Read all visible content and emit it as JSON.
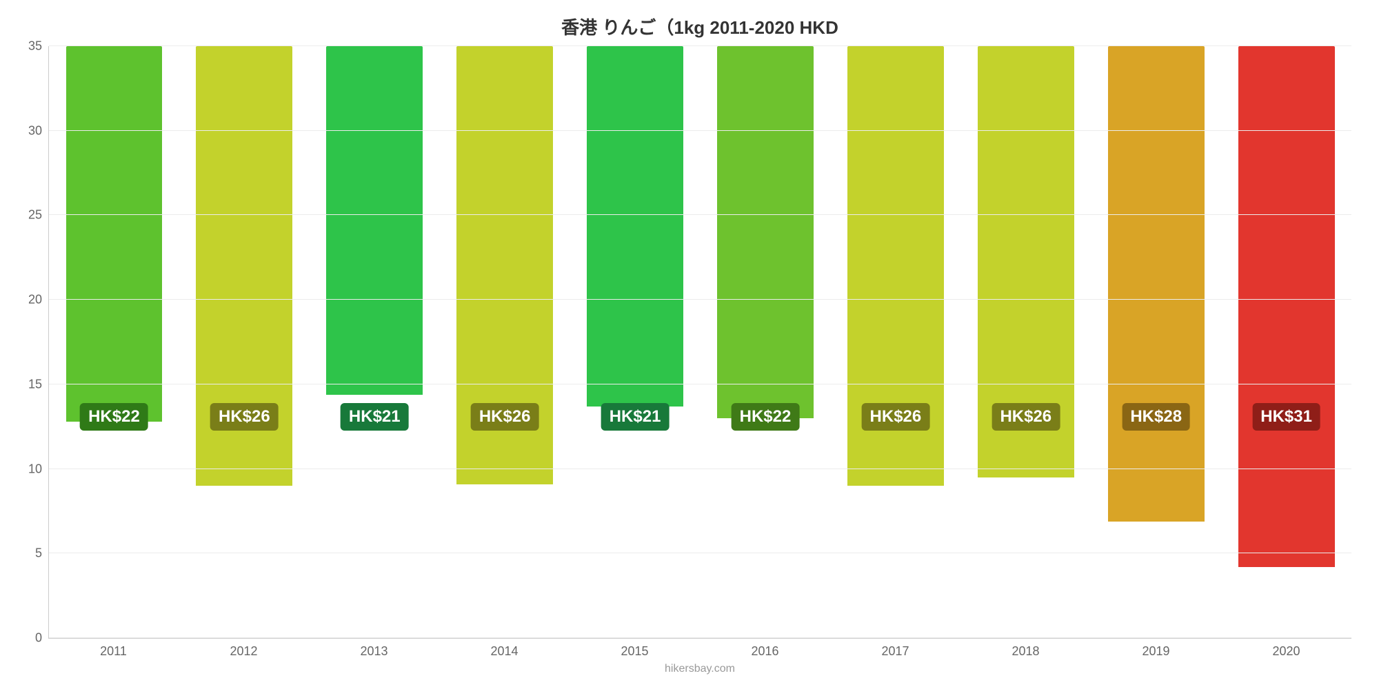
{
  "chart": {
    "type": "bar",
    "title": "香港 りんご（1kg 2011-2020 HKD",
    "title_fontsize": 26,
    "source_text": "hikersbay.com",
    "source_fontsize": 16,
    "background_color": "#ffffff",
    "grid_color": "#ececec",
    "axis_color": "#cccccc",
    "tick_color": "#666666",
    "tick_fontsize": 18,
    "ylim": [
      0,
      35
    ],
    "ytick_step": 5,
    "yticks": [
      0,
      5,
      10,
      15,
      20,
      25,
      30,
      35
    ],
    "bar_width": 0.74,
    "label_fontsize": 24,
    "label_text_color": "#ffffff",
    "label_radius": 6,
    "label_center_value": 13,
    "categories": [
      "2011",
      "2012",
      "2013",
      "2014",
      "2015",
      "2016",
      "2017",
      "2018",
      "2019",
      "2020"
    ],
    "values": [
      22.2,
      26.0,
      20.6,
      25.9,
      21.3,
      22.0,
      26.0,
      25.5,
      28.1,
      30.8
    ],
    "value_labels": [
      "HK$22",
      "HK$26",
      "HK$21",
      "HK$26",
      "HK$21",
      "HK$22",
      "HK$26",
      "HK$26",
      "HK$28",
      "HK$31"
    ],
    "bar_colors": [
      "#5ec22e",
      "#c3d22c",
      "#2ec44a",
      "#c3d22c",
      "#2ec44a",
      "#6ec22e",
      "#c3d22c",
      "#c3d22c",
      "#d9a426",
      "#e2362e"
    ],
    "label_bg_colors": [
      "#2f7a17",
      "#7a7e18",
      "#18793a",
      "#7a7e18",
      "#18793a",
      "#3f7a17",
      "#7a7e18",
      "#7a7e18",
      "#8a6614",
      "#8f1e18"
    ]
  }
}
